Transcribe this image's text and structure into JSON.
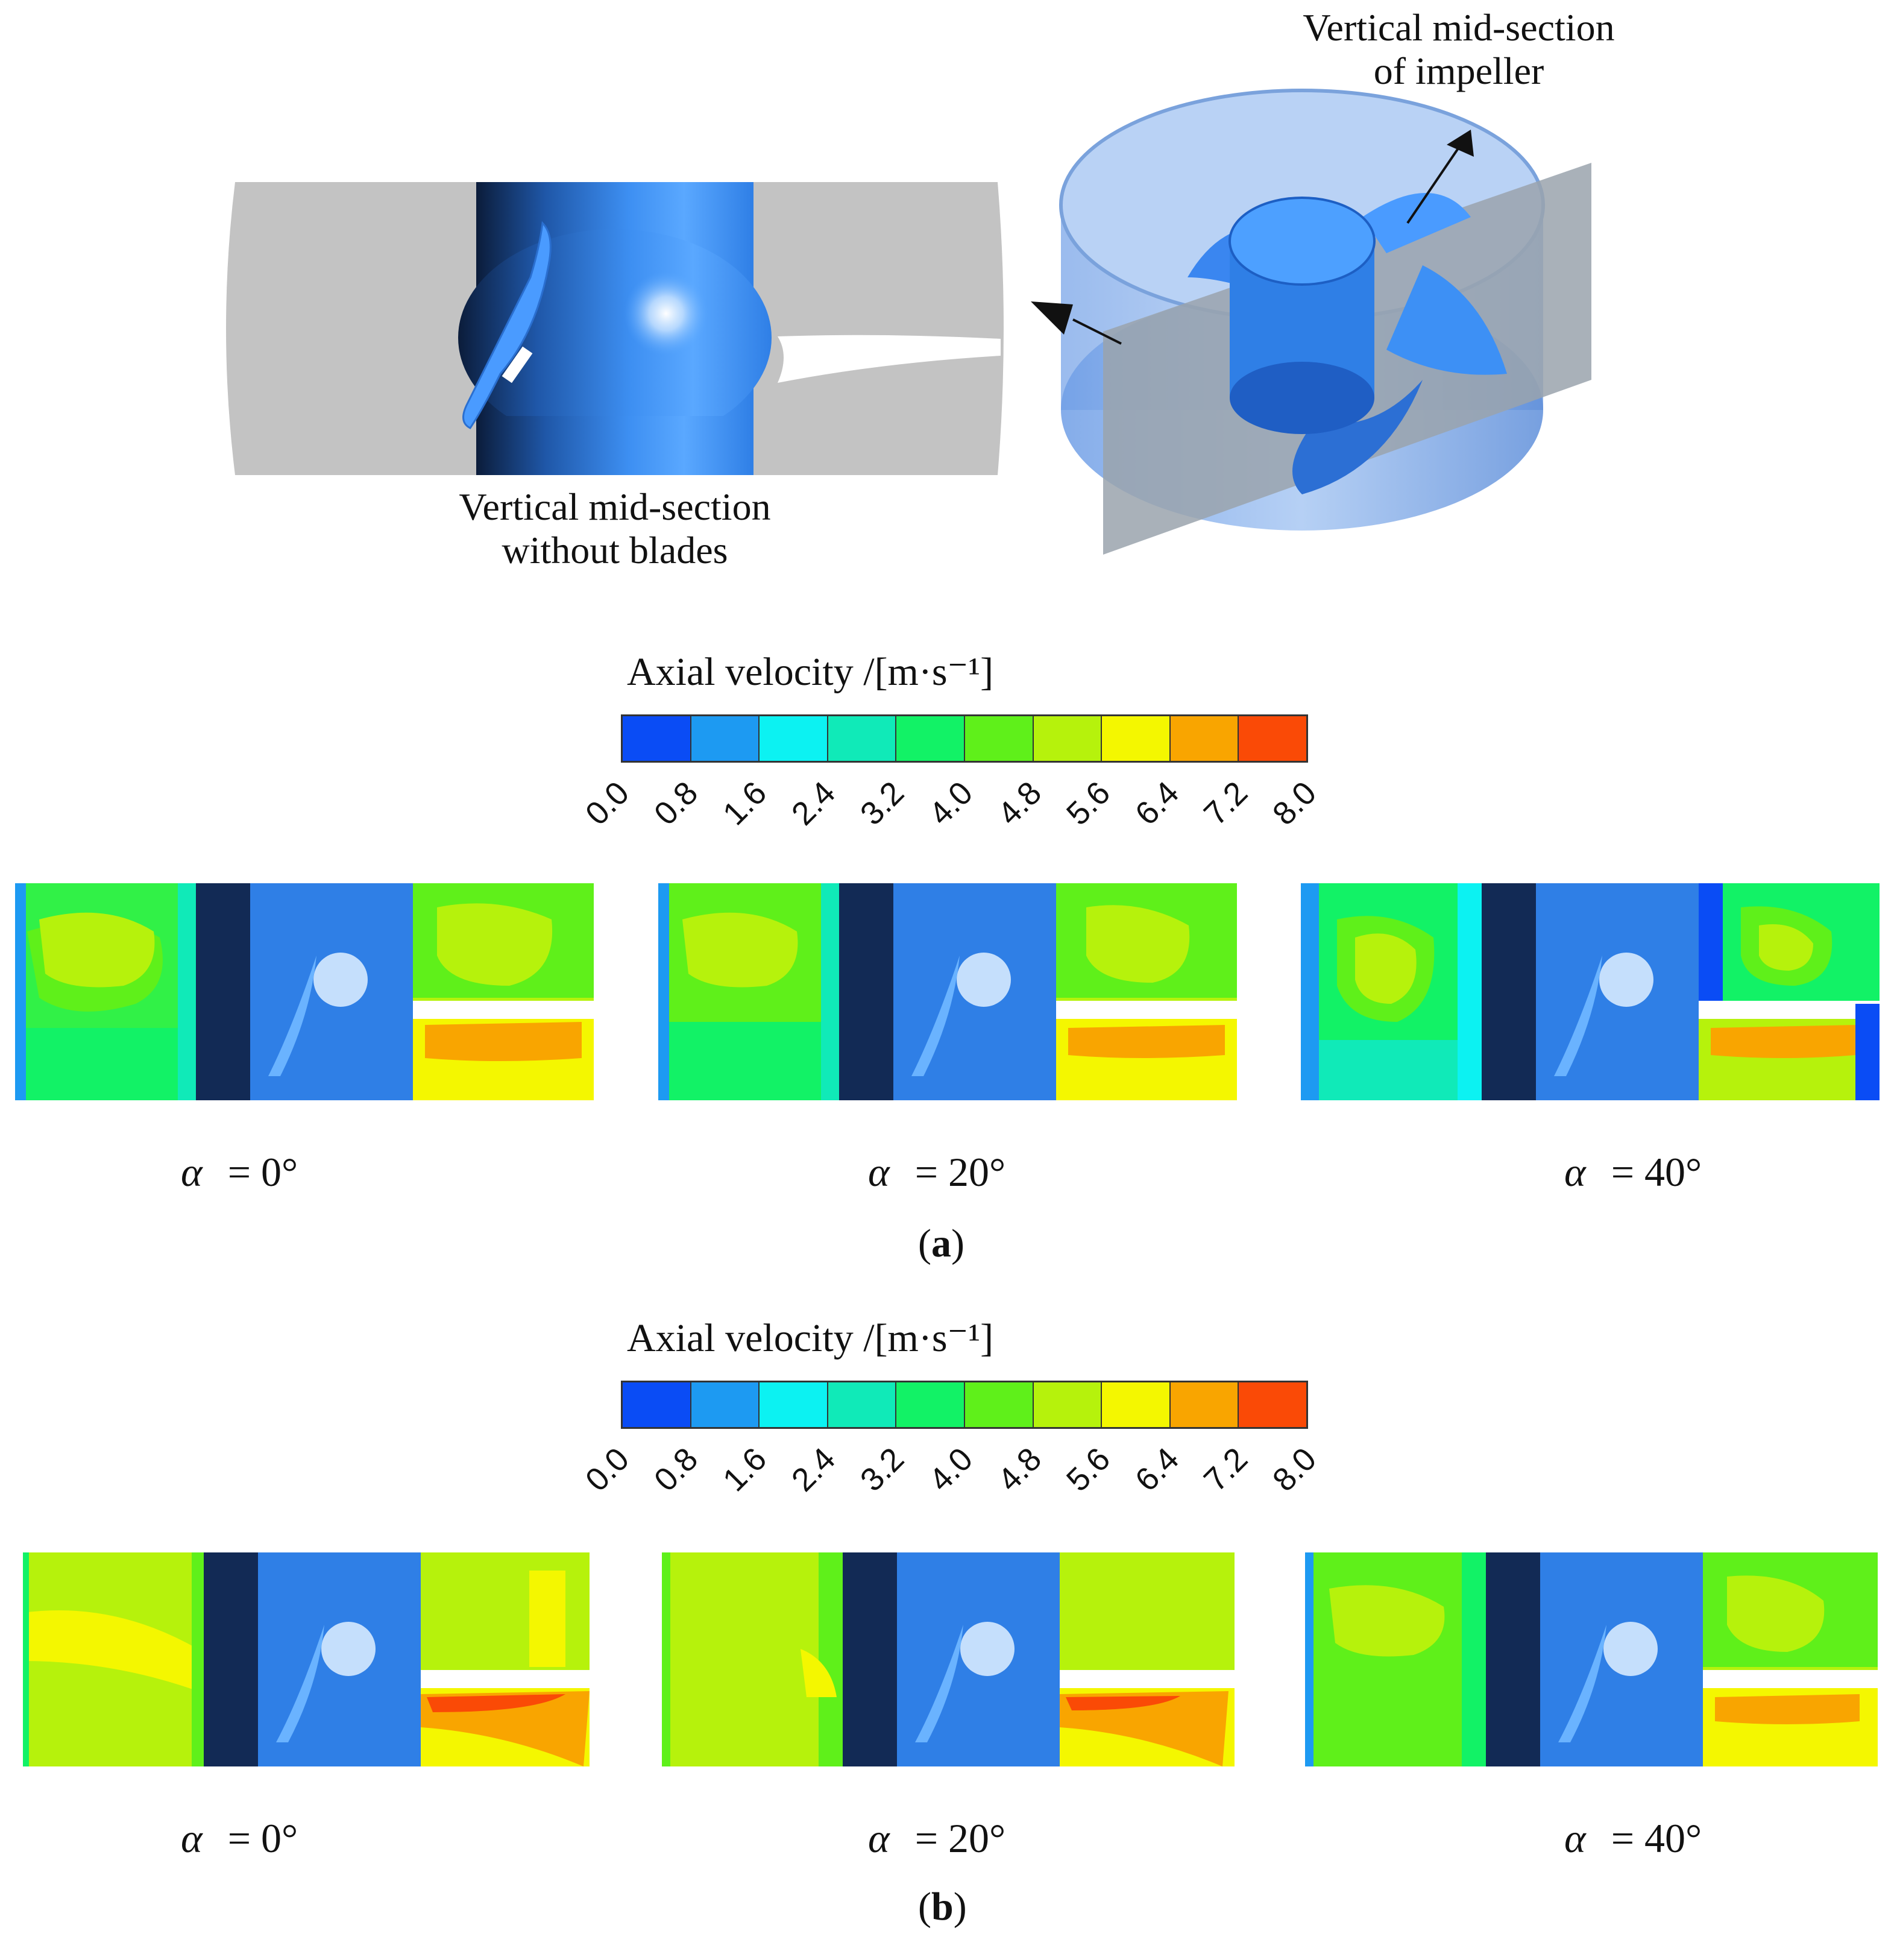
{
  "top": {
    "label_left": [
      "Vertical mid-section",
      "without blades"
    ],
    "label_right": [
      "Vertical mid-section",
      "of impeller"
    ]
  },
  "colorbar": {
    "title": "Axial velocity /[m·s⁻¹]",
    "ticks": [
      "0.0",
      "0.8",
      "1.6",
      "2.4",
      "3.2",
      "4.0",
      "4.8",
      "5.6",
      "6.4",
      "7.2",
      "8.0"
    ],
    "colors": [
      "#0a4cf5",
      "#1d9af2",
      "#0cf2f2",
      "#10eab8",
      "#12f266",
      "#5ff01a",
      "#b6f20c",
      "#f4f700",
      "#f9a500",
      "#fa4a06"
    ]
  },
  "panels": {
    "a": {
      "label": "a",
      "cases": [
        {
          "alpha_symbol": "α",
          "alpha_value": "= 0°"
        },
        {
          "alpha_symbol": "α",
          "alpha_value": "= 20°"
        },
        {
          "alpha_symbol": "α",
          "alpha_value": "= 40°"
        }
      ]
    },
    "b": {
      "label": "b",
      "cases": [
        {
          "alpha_symbol": "α",
          "alpha_value": "= 0°"
        },
        {
          "alpha_symbol": "α",
          "alpha_value": "= 20°"
        },
        {
          "alpha_symbol": "α",
          "alpha_value": "= 40°"
        }
      ]
    }
  }
}
